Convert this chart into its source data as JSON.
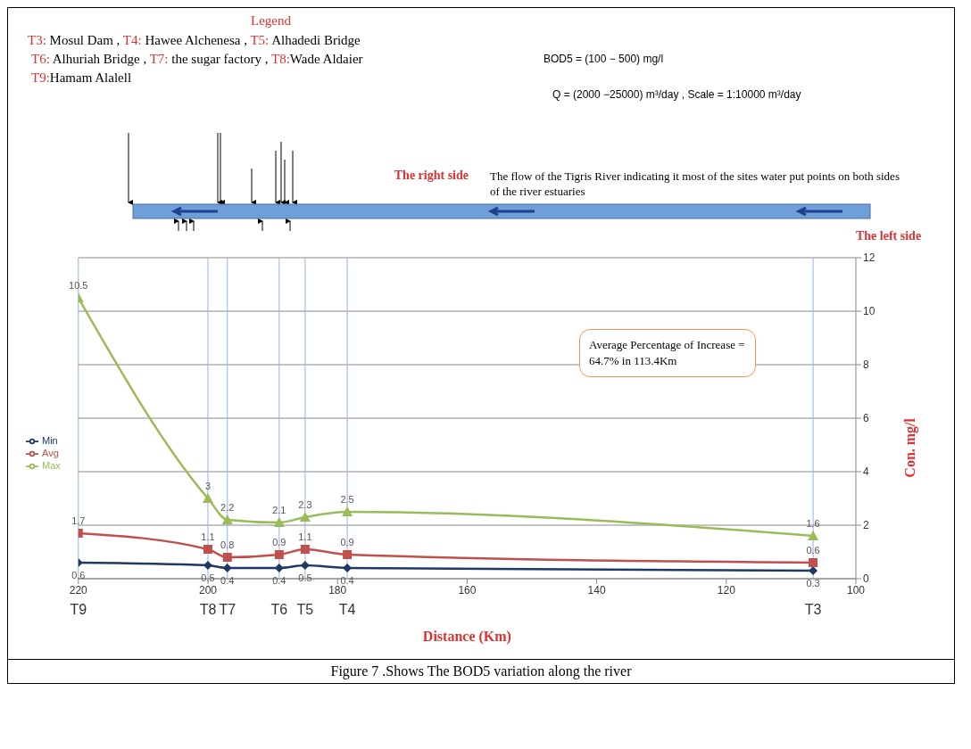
{
  "chart_data": {
    "type": "line",
    "annotations": [
      "Legend",
      "T3: Mosul Dam , T4: Hawee Alchenesa , T5: Alhadedi Bridge",
      "T6: Alhuriah Bridge , T7: the sugar factory , T8:Wade Aldaier",
      "T9:Hamam Alalell",
      "BOD5 = (100 − 500) mg/l",
      "Q = (2000 −25000) m³/day , Scale = 1:10000 m³/day",
      "The right side",
      "The flow of the Tigris River indicating it most of the sites water put points on both sides of the river estuaries",
      "The left side",
      "Average Percentage of Increase = 64.7% in 113.4Km",
      "Figure 7 .Shows The BOD5 variation along the river"
    ],
    "xlabel": "Distance (Km)",
    "ylabel": "Con. mg/l",
    "x": [
      220,
      200,
      197,
      189,
      185,
      178.5,
      106.6
    ],
    "series": [
      {
        "name": "Min",
        "color": "#1f3864",
        "marker": "diamond",
        "values": [
          0.6,
          0.5,
          0.4,
          0.4,
          0.5,
          0.4,
          0.3
        ]
      },
      {
        "name": "Avg",
        "color": "#c0504d",
        "marker": "square",
        "values": [
          1.7,
          1.1,
          0.8,
          0.9,
          1.1,
          0.9,
          0.6
        ]
      },
      {
        "name": "Max",
        "color": "#9bbb59",
        "marker": "triangle",
        "values": [
          10.5,
          3,
          2.2,
          2.1,
          2.3,
          2.5,
          1.6
        ]
      }
    ],
    "xlim": [
      220,
      100
    ],
    "xticks": [
      220,
      200,
      180,
      160,
      140,
      120,
      100
    ],
    "ylim": [
      0,
      12
    ],
    "yticks": [
      0,
      2,
      4,
      6,
      8,
      10,
      12
    ],
    "ref_lines": [
      {
        "axis": "x",
        "value": 220,
        "label": "T9",
        "color": "#8eb4e3"
      },
      {
        "axis": "x",
        "value": 200,
        "label": "T8",
        "color": "#8eb4e3"
      },
      {
        "axis": "x",
        "value": 197,
        "label": "T7",
        "color": "#8eb4e3"
      },
      {
        "axis": "x",
        "value": 189,
        "label": "T6",
        "color": "#8eb4e3"
      },
      {
        "axis": "x",
        "value": 185,
        "label": "T5",
        "color": "#8eb4e3"
      },
      {
        "axis": "x",
        "value": 178.5,
        "label": "T4",
        "color": "#8eb4e3"
      },
      {
        "axis": "x",
        "value": 106.6,
        "label": "T3",
        "color": "#8eb4e3"
      }
    ],
    "data_labels": true,
    "grid": "y",
    "legend": "left",
    "line_style": "solid"
  }
}
